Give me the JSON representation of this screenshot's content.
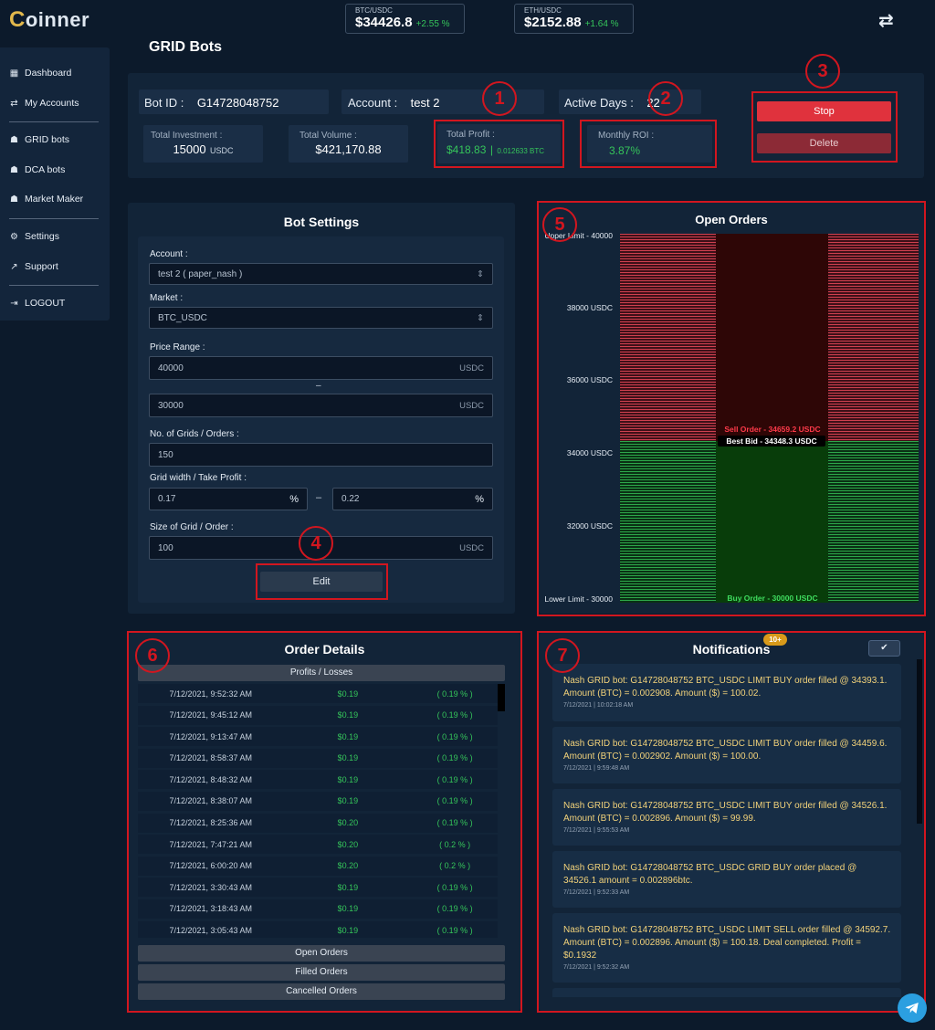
{
  "brand": {
    "logo_c": "C",
    "logo_rest": "oinner"
  },
  "tickers": [
    {
      "pair": "BTC/USDC",
      "price": "$34426.8",
      "change": "+2.55 %"
    },
    {
      "pair": "ETH/USDC",
      "price": "$2152.88",
      "change": "+1.64 %"
    }
  ],
  "sidebar": {
    "items": [
      {
        "label": "Dashboard",
        "icon": "grid-icon"
      },
      {
        "label": "My Accounts",
        "icon": "swap-icon"
      },
      {
        "label": "GRID bots",
        "icon": "robot-icon"
      },
      {
        "label": "DCA bots",
        "icon": "robot-icon"
      },
      {
        "label": "Market Maker",
        "icon": "robot-icon"
      },
      {
        "label": "Settings",
        "icon": "gear-icon"
      },
      {
        "label": "Support",
        "icon": "external-link-icon"
      },
      {
        "label": "LOGOUT",
        "icon": "logout-icon"
      }
    ]
  },
  "page_title": "GRID Bots",
  "bot_info": {
    "bot_id_label": "Bot ID :",
    "bot_id": "G14728048752",
    "account_label": "Account :",
    "account": "test 2",
    "active_days_label": "Active Days :",
    "active_days": "22",
    "total_investment_label": "Total Investment :",
    "total_investment": "15000",
    "total_investment_unit": "USDC",
    "total_volume_label": "Total Volume :",
    "total_volume": "$421,170.88",
    "total_profit_label": "Total Profit :",
    "total_profit_usd": "$418.83",
    "total_profit_sep": "|",
    "total_profit_btc": "0.012633 BTC",
    "monthly_roi_label": "Monthly ROI :",
    "monthly_roi": "3.87%",
    "stop_label": "Stop",
    "delete_label": "Delete"
  },
  "markers": [
    "1",
    "2",
    "3",
    "4",
    "5",
    "6",
    "7"
  ],
  "bot_settings": {
    "title": "Bot Settings",
    "account_label": "Account :",
    "account_value": "test 2 ( paper_nash )",
    "market_label": "Market :",
    "market_value": "BTC_USDC",
    "price_range_label": "Price Range :",
    "price_upper": "40000",
    "price_lower": "30000",
    "price_unit": "USDC",
    "range_dash": "–",
    "grids_label": "No. of Grids / Orders :",
    "grids_value": "150",
    "grid_width_label": "Grid width / Take Profit :",
    "grid_width": "0.17",
    "take_profit": "0.22",
    "pct": "%",
    "size_label": "Size of Grid / Order :",
    "size_value": "100",
    "size_unit": "USDC",
    "edit_label": "Edit"
  },
  "open_orders": {
    "title": "Open Orders",
    "upper_label": "Upper Limit - 40000",
    "lower_label": "Lower Limit - 30000",
    "ticks": [
      "38000 USDC",
      "36000 USDC",
      "34000 USDC",
      "32000 USDC"
    ],
    "sell_order_label": "Sell Order - 34659.2 USDC",
    "best_bid_label": "Best Bid - 34348.3 USDC",
    "buy_order_label": "Buy Order - 30000 USDC",
    "colors": {
      "sell": "#d0404f",
      "buy": "#2da84a"
    }
  },
  "order_details": {
    "title": "Order Details",
    "header": "Profits / Losses",
    "rows": [
      {
        "time": "7/12/2021, 9:52:32 AM",
        "value": "$0.19",
        "pct": "( 0.19 % )"
      },
      {
        "time": "7/12/2021, 9:45:12 AM",
        "value": "$0.19",
        "pct": "( 0.19 % )"
      },
      {
        "time": "7/12/2021, 9:13:47 AM",
        "value": "$0.19",
        "pct": "( 0.19 % )"
      },
      {
        "time": "7/12/2021, 8:58:37 AM",
        "value": "$0.19",
        "pct": "( 0.19 % )"
      },
      {
        "time": "7/12/2021, 8:48:32 AM",
        "value": "$0.19",
        "pct": "( 0.19 % )"
      },
      {
        "time": "7/12/2021, 8:38:07 AM",
        "value": "$0.19",
        "pct": "( 0.19 % )"
      },
      {
        "time": "7/12/2021, 8:25:36 AM",
        "value": "$0.20",
        "pct": "( 0.19 % )"
      },
      {
        "time": "7/12/2021, 7:47:21 AM",
        "value": "$0.20",
        "pct": "( 0.2 % )"
      },
      {
        "time": "7/12/2021, 6:00:20 AM",
        "value": "$0.20",
        "pct": "( 0.2 % )"
      },
      {
        "time": "7/12/2021, 3:30:43 AM",
        "value": "$0.19",
        "pct": "( 0.19 % )"
      },
      {
        "time": "7/12/2021, 3:18:43 AM",
        "value": "$0.19",
        "pct": "( 0.19 % )"
      },
      {
        "time": "7/12/2021, 3:05:43 AM",
        "value": "$0.19",
        "pct": "( 0.19 % )"
      }
    ],
    "tabs": [
      "Open Orders",
      "Filled Orders",
      "Cancelled Orders"
    ]
  },
  "notifications": {
    "title": "Notifications",
    "badge": "10+",
    "items": [
      {
        "msg": "Nash GRID bot: G14728048752 BTC_USDC LIMIT BUY order filled @ 34393.1. Amount (BTC) = 0.002908. Amount ($) = 100.02.",
        "ts": "7/12/2021 | 10:02:18 AM"
      },
      {
        "msg": "Nash GRID bot: G14728048752 BTC_USDC LIMIT BUY order filled @ 34459.6. Amount (BTC) = 0.002902. Amount ($) = 100.00.",
        "ts": "7/12/2021 | 9:59:48 AM"
      },
      {
        "msg": "Nash GRID bot: G14728048752 BTC_USDC LIMIT BUY order filled @ 34526.1. Amount (BTC) = 0.002896. Amount ($) = 99.99.",
        "ts": "7/12/2021 | 9:55:53 AM"
      },
      {
        "msg": "Nash GRID bot: G14728048752 BTC_USDC GRID BUY order placed @ 34526.1 amount = 0.002896btc.",
        "ts": "7/12/2021 | 9:52:33 AM"
      },
      {
        "msg": "Nash GRID bot: G14728048752 BTC_USDC LIMIT SELL order filled @ 34592.7. Amount (BTC) = 0.002896. Amount ($) = 100.18. Deal completed. Profit = $0.1932",
        "ts": "7/12/2021 | 9:52:32 AM"
      }
    ]
  }
}
